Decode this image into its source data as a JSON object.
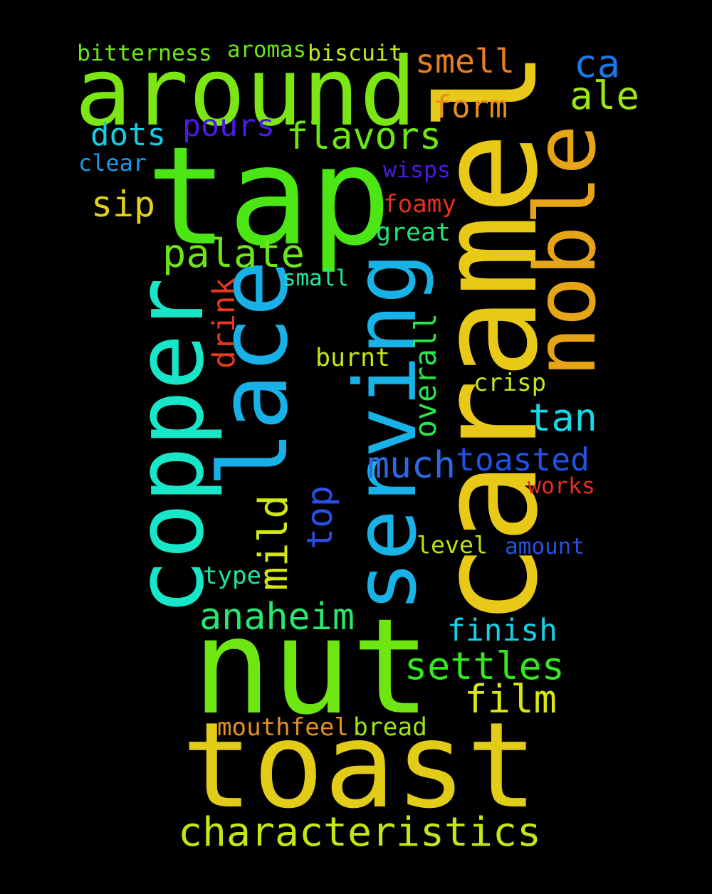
{
  "words": [
    {
      "text": "tap",
      "color": "#4be614",
      "vertical": false
    },
    {
      "text": "caramel",
      "color": "#e8c917",
      "vertical": true
    },
    {
      "text": "nut",
      "color": "#6ee612",
      "vertical": false
    },
    {
      "text": "toast",
      "color": "#e3cc17",
      "vertical": false
    },
    {
      "text": "around",
      "color": "#7ce614",
      "vertical": false
    },
    {
      "text": "serving",
      "color": "#18b2e6",
      "vertical": true
    },
    {
      "text": "copper",
      "color": "#18e6c8",
      "vertical": true
    },
    {
      "text": "lace",
      "color": "#18b0e6",
      "vertical": true
    },
    {
      "text": "noble",
      "color": "#e6a517",
      "vertical": true
    },
    {
      "text": "characteristics",
      "color": "#c4e614",
      "vertical": false
    },
    {
      "text": "anaheim",
      "color": "#28e670",
      "vertical": false
    },
    {
      "text": "settles",
      "color": "#38e620",
      "vertical": false
    },
    {
      "text": "palate",
      "color": "#6ce614",
      "vertical": false
    },
    {
      "text": "flavors",
      "color": "#6ee614",
      "vertical": false
    },
    {
      "text": "film",
      "color": "#d8e614",
      "vertical": false
    },
    {
      "text": "much",
      "color": "#2a6ae6",
      "vertical": false
    },
    {
      "text": "toasted",
      "color": "#1f52e6",
      "vertical": false
    },
    {
      "text": "finish",
      "color": "#18cfe6",
      "vertical": false
    },
    {
      "text": "smell",
      "color": "#e67e22",
      "vertical": false
    },
    {
      "text": "tan",
      "color": "#18d8e6",
      "vertical": false
    },
    {
      "text": "ca",
      "color": "#1a78e6",
      "vertical": false
    },
    {
      "text": "ale",
      "color": "#9de614",
      "vertical": false
    },
    {
      "text": "dots",
      "color": "#18cde6",
      "vertical": false
    },
    {
      "text": "pours",
      "color": "#4b1ae6",
      "vertical": false
    },
    {
      "text": "sip",
      "color": "#e6d017",
      "vertical": false
    },
    {
      "text": "mild",
      "color": "#d2e614",
      "vertical": true
    },
    {
      "text": "top",
      "color": "#2a4ee6",
      "vertical": true
    },
    {
      "text": "form",
      "color": "#e69022",
      "vertical": false
    },
    {
      "text": "drink",
      "color": "#e63a1e",
      "vertical": true
    },
    {
      "text": "overall",
      "color": "#28e64c",
      "vertical": true
    },
    {
      "text": "burnt",
      "color": "#c8e614",
      "vertical": false
    },
    {
      "text": "crisp",
      "color": "#c8e614",
      "vertical": false
    },
    {
      "text": "level",
      "color": "#b8e614",
      "vertical": false
    },
    {
      "text": "amount",
      "color": "#2452e6",
      "vertical": false
    },
    {
      "text": "works",
      "color": "#e6301e",
      "vertical": false
    },
    {
      "text": "type",
      "color": "#1ee6a0",
      "vertical": false
    },
    {
      "text": "mouthfeel",
      "color": "#e69022",
      "vertical": false
    },
    {
      "text": "bread",
      "color": "#9ce614",
      "vertical": false
    },
    {
      "text": "foamy",
      "color": "#e6301e",
      "vertical": false
    },
    {
      "text": "great",
      "color": "#1ee67a",
      "vertical": false
    },
    {
      "text": "small",
      "color": "#1ee6a8",
      "vertical": false
    },
    {
      "text": "wisps",
      "color": "#4b1ae6",
      "vertical": false
    },
    {
      "text": "clear",
      "color": "#189ce6",
      "vertical": false
    },
    {
      "text": "bitterness",
      "color": "#6ce614",
      "vertical": false
    },
    {
      "text": "aromas",
      "color": "#6ee614",
      "vertical": false
    },
    {
      "text": "biscuit",
      "color": "#c8e614",
      "vertical": false
    }
  ]
}
